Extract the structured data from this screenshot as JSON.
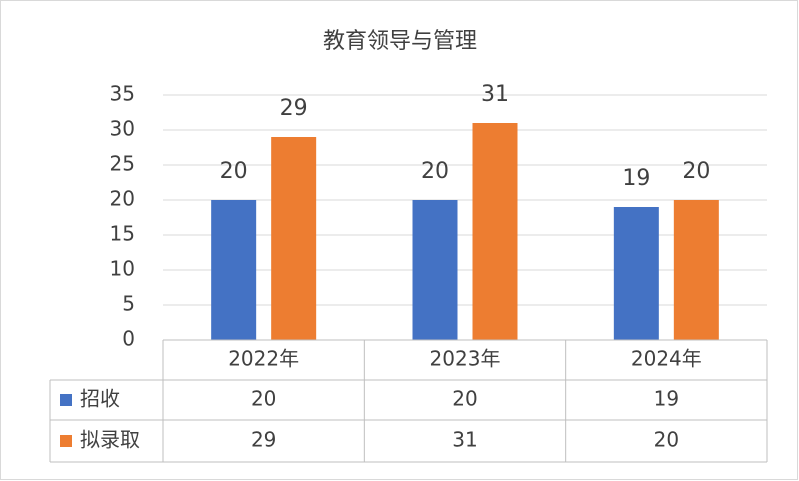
{
  "chart_data": {
    "type": "bar",
    "title": "教育领导与管理",
    "categories": [
      "2022年",
      "2023年",
      "2024年"
    ],
    "series": [
      {
        "name": "招收",
        "color": "#4472c4",
        "values": [
          20,
          20,
          19
        ]
      },
      {
        "name": "拟录取",
        "color": "#ed7d31",
        "values": [
          29,
          31,
          20
        ]
      }
    ],
    "ylim": [
      0,
      35
    ],
    "yticks": [
      0,
      5,
      10,
      15,
      20,
      25,
      30,
      35
    ],
    "grid": true,
    "data_table": true
  }
}
